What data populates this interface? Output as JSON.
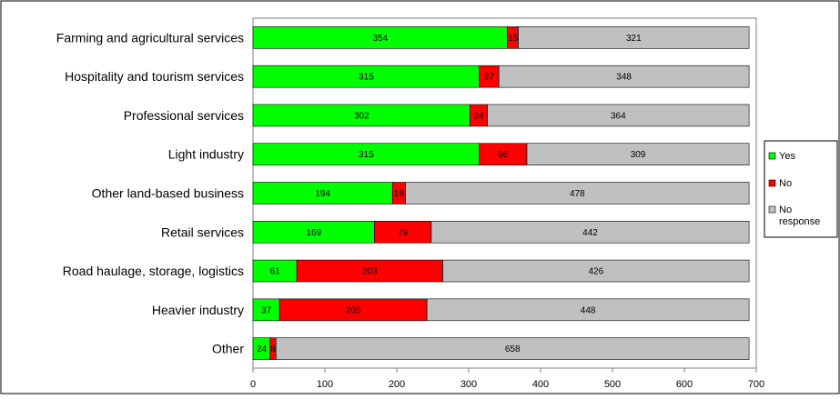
{
  "chart_data": {
    "type": "bar",
    "orientation": "horizontal",
    "stacked": true,
    "categories": [
      "Farming and agricultural services",
      "Hospitality and tourism services",
      "Professional services",
      "Light industry",
      "Other land-based business",
      "Retail services",
      "Road haulage, storage, logistics",
      "Heavier industry",
      "Other"
    ],
    "series": [
      {
        "name": "Yes",
        "color": "#00ff00",
        "values": [
          354,
          315,
          302,
          315,
          194,
          169,
          61,
          37,
          24
        ]
      },
      {
        "name": "No",
        "color": "#ff0000",
        "values": [
          15,
          27,
          24,
          66,
          18,
          79,
          203,
          205,
          8
        ]
      },
      {
        "name": "No response",
        "color": "#c0c0c0",
        "values": [
          321,
          348,
          364,
          309,
          478,
          442,
          426,
          448,
          658
        ]
      }
    ],
    "data_labels": [
      [
        "354",
        "315",
        "302",
        "315",
        "194",
        "169",
        "61",
        "37",
        "24"
      ],
      [
        "15",
        "27",
        "24",
        "66",
        "18",
        "79",
        "203",
        "205",
        "8"
      ],
      [
        "321",
        "348",
        "364",
        "309",
        "478",
        "442",
        "426",
        "448",
        "658"
      ]
    ],
    "xlim": [
      0,
      700
    ],
    "xticks": [
      0,
      100,
      200,
      300,
      400,
      500,
      600,
      700
    ],
    "grid": false,
    "legend_position": "right",
    "legend_labels": [
      "Yes",
      "No",
      "No\nresponse"
    ],
    "title": "",
    "xlabel": "",
    "ylabel": ""
  }
}
